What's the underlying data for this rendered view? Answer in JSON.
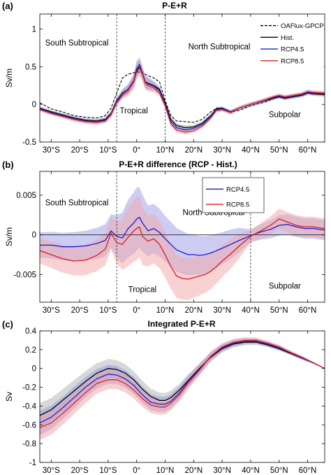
{
  "chart_data": [
    {
      "panel": "(a)",
      "type": "line",
      "title": "P-E+R",
      "ylabel": "Sv/m",
      "ylim": [
        -0.5,
        1.2
      ],
      "xlim": [
        -34,
        66
      ],
      "yticks": [
        -0.5,
        0,
        0.5,
        1
      ],
      "ytick_labels": [
        "-0.5",
        "0",
        "0.5",
        "1"
      ],
      "xticks": [
        -30,
        -20,
        -10,
        0,
        10,
        20,
        30,
        40,
        50,
        60
      ],
      "xtick_labels": [
        "30°S",
        "20°S",
        "10°S",
        "0°",
        "10°N",
        "20°N",
        "30°N",
        "40°N",
        "50°N",
        "60°N"
      ],
      "vlines": [
        -7,
        10
      ],
      "legend_position": "top-right",
      "annotations": [
        {
          "text": "South Subtropical",
          "x": -21,
          "y": 0.78
        },
        {
          "text": "North Subtropical",
          "x": 29,
          "y": 0.73
        },
        {
          "text": "Tropical",
          "x": -1,
          "y": -0.12
        },
        {
          "text": "Subpolar",
          "x": 52,
          "y": -0.17
        }
      ],
      "x": [
        -34,
        -30,
        -26,
        -22,
        -18,
        -14,
        -11,
        -9,
        -7,
        -5,
        -3,
        -1,
        0,
        1,
        2,
        3,
        4,
        6,
        8,
        10,
        12,
        14,
        17,
        20,
        23,
        26,
        28,
        30,
        33,
        36,
        40,
        45,
        48,
        50,
        52,
        55,
        58,
        60,
        62,
        66
      ],
      "series": [
        {
          "name": "OAFlux-GPCP",
          "color": "#000000",
          "dash": true,
          "band": false,
          "values": [
            0.02,
            -0.06,
            -0.1,
            -0.15,
            -0.17,
            -0.18,
            -0.15,
            -0.05,
            0.15,
            0.35,
            0.4,
            0.42,
            0.43,
            0.43,
            0.42,
            0.4,
            0.38,
            0.35,
            0.3,
            0.05,
            -0.15,
            -0.22,
            -0.23,
            -0.24,
            -0.2,
            -0.1,
            -0.05,
            -0.06,
            -0.1,
            -0.08,
            -0.02,
            0.03,
            0.08,
            0.1,
            0.1,
            0.12,
            0.14,
            0.15,
            0.14,
            0.13
          ]
        },
        {
          "name": "Hist.",
          "color": "#000000",
          "dash": false,
          "band": true,
          "band_color": "#a8a8a8",
          "values": [
            -0.05,
            -0.1,
            -0.14,
            -0.18,
            -0.21,
            -0.22,
            -0.2,
            -0.12,
            0.05,
            0.15,
            0.2,
            0.3,
            0.45,
            0.5,
            0.4,
            0.3,
            0.28,
            0.25,
            0.2,
            0.02,
            -0.2,
            -0.28,
            -0.31,
            -0.3,
            -0.25,
            -0.15,
            -0.06,
            -0.05,
            -0.1,
            -0.05,
            0.0,
            0.05,
            0.08,
            0.1,
            0.08,
            0.1,
            0.12,
            0.15,
            0.14,
            0.13
          ]
        },
        {
          "name": "RCP4.5",
          "color": "#2020d0",
          "dash": false,
          "band": true,
          "band_color": "#8aa0e6",
          "values": [
            -0.06,
            -0.11,
            -0.15,
            -0.19,
            -0.22,
            -0.23,
            -0.21,
            -0.13,
            0.04,
            0.14,
            0.2,
            0.32,
            0.48,
            0.53,
            0.42,
            0.3,
            0.27,
            0.24,
            0.18,
            0.0,
            -0.23,
            -0.31,
            -0.34,
            -0.32,
            -0.27,
            -0.16,
            -0.07,
            -0.06,
            -0.1,
            -0.05,
            0.0,
            0.05,
            0.09,
            0.11,
            0.09,
            0.11,
            0.13,
            0.16,
            0.15,
            0.14
          ]
        },
        {
          "name": "RCP8.5",
          "color": "#e02020",
          "dash": false,
          "band": true,
          "band_color": "#f4a0a0",
          "values": [
            -0.07,
            -0.12,
            -0.16,
            -0.2,
            -0.23,
            -0.24,
            -0.22,
            -0.14,
            0.02,
            0.12,
            0.18,
            0.3,
            0.43,
            0.48,
            0.4,
            0.28,
            0.25,
            0.22,
            0.15,
            -0.02,
            -0.26,
            -0.34,
            -0.37,
            -0.35,
            -0.29,
            -0.18,
            -0.08,
            -0.07,
            -0.11,
            -0.05,
            0.0,
            0.06,
            0.1,
            0.12,
            0.1,
            0.12,
            0.14,
            0.17,
            0.16,
            0.15
          ]
        }
      ]
    },
    {
      "panel": "(b)",
      "type": "line",
      "title": "P-E+R difference (RCP - Hist.)",
      "ylabel": "Sv/m",
      "ylim": [
        -0.0085,
        0.008
      ],
      "xlim": [
        -34,
        66
      ],
      "yticks": [
        -0.005,
        0,
        0.005
      ],
      "ytick_labels": [
        "-0.005",
        "0",
        "0.005"
      ],
      "xticks": [
        -30,
        -20,
        -10,
        0,
        10,
        20,
        30,
        40,
        50,
        60
      ],
      "xtick_labels": [
        "30°S",
        "20°S",
        "10°S",
        "0°",
        "10°N",
        "20°N",
        "30°N",
        "40°N",
        "50°N",
        "60°N"
      ],
      "vlines": [
        -7,
        40
      ],
      "zero_line": true,
      "legend_position": "top-right",
      "annotations": [
        {
          "text": "South Subtropical",
          "x": -21,
          "y": 0.0037
        },
        {
          "text": "North Subtropical",
          "x": 27,
          "y": 0.0025
        },
        {
          "text": "Tropical",
          "x": 2,
          "y": -0.0072
        },
        {
          "text": "Subpolar",
          "x": 52,
          "y": -0.0068
        }
      ],
      "x": [
        -34,
        -30,
        -26,
        -22,
        -18,
        -14,
        -11,
        -9,
        -7,
        -5,
        -3,
        -1,
        0,
        1,
        2,
        4,
        6,
        8,
        10,
        12,
        14,
        16,
        18,
        20,
        22,
        24,
        26,
        28,
        30,
        33,
        36,
        40,
        44,
        47,
        50,
        53,
        56,
        59,
        62,
        66
      ],
      "series": [
        {
          "name": "RCP4.5",
          "color": "#1a1ad0",
          "band": true,
          "band_color": "#9c9ce8",
          "values": [
            -0.0013,
            -0.0013,
            -0.0015,
            -0.0015,
            -0.0014,
            -0.0011,
            -0.0007,
            0.0005,
            -0.0002,
            -0.0004,
            0.0008,
            0.0015,
            0.002,
            0.0022,
            0.0015,
            0.0005,
            0.0008,
            0.0003,
            -0.0005,
            -0.0012,
            -0.0019,
            -0.0022,
            -0.0025,
            -0.0025,
            -0.0026,
            -0.0025,
            -0.0023,
            -0.002,
            -0.0017,
            -0.0012,
            -0.0007,
            -0.0001,
            0.0004,
            0.0007,
            0.0012,
            0.0013,
            0.001,
            0.0008,
            0.0008,
            0.0006
          ]
        },
        {
          "name": "RCP8.5",
          "color": "#e01a1a",
          "band": true,
          "band_color": "#f2a6a6",
          "values": [
            -0.002,
            -0.0025,
            -0.003,
            -0.0033,
            -0.0032,
            -0.0026,
            -0.0018,
            0.0002,
            -0.001,
            -0.0012,
            -0.0003,
            0.0005,
            0.0008,
            0.001,
            -0.0002,
            -0.0008,
            -0.0005,
            -0.0012,
            -0.0025,
            -0.004,
            -0.0052,
            -0.0055,
            -0.0056,
            -0.0054,
            -0.0052,
            -0.005,
            -0.0046,
            -0.004,
            -0.0033,
            -0.0024,
            -0.0014,
            -0.0002,
            0.0006,
            0.0012,
            0.002,
            0.0016,
            0.0012,
            0.001,
            0.001,
            0.0008
          ]
        }
      ]
    },
    {
      "panel": "(c)",
      "type": "line",
      "title": "Integrated P-E+R",
      "ylabel": "Sv",
      "ylim": [
        -1,
        0.4
      ],
      "xlim": [
        -34,
        66
      ],
      "yticks": [
        -1,
        -0.8,
        -0.6,
        -0.4,
        -0.2,
        0,
        0.2,
        0.4
      ],
      "ytick_labels": [
        "-1",
        "-0.8",
        "-0.6",
        "-0.4",
        "-0.2",
        "0",
        "0.2",
        "0.4"
      ],
      "xticks": [
        -30,
        -20,
        -10,
        0,
        10,
        20,
        30,
        40,
        50,
        60
      ],
      "xtick_labels": [
        "30°S",
        "20°S",
        "10°S",
        "0°",
        "10°N",
        "20°N",
        "30°N",
        "40°N",
        "50°N",
        "60°N"
      ],
      "x": [
        -34,
        -30,
        -26,
        -22,
        -18,
        -14,
        -10,
        -7,
        -4,
        -1,
        2,
        5,
        8,
        10,
        12,
        15,
        18,
        22,
        26,
        30,
        34,
        38,
        40,
        42,
        46,
        50,
        54,
        58,
        62,
        64,
        66
      ],
      "series": [
        {
          "name": "Hist.",
          "color": "#000000",
          "band": true,
          "band_color": "#b2b2b2",
          "values": [
            -0.5,
            -0.44,
            -0.34,
            -0.24,
            -0.14,
            -0.05,
            0.0,
            -0.01,
            -0.05,
            -0.12,
            -0.22,
            -0.3,
            -0.34,
            -0.34,
            -0.31,
            -0.23,
            -0.13,
            0.0,
            0.12,
            0.21,
            0.26,
            0.28,
            0.28,
            0.28,
            0.25,
            0.21,
            0.16,
            0.11,
            0.06,
            0.03,
            0.0
          ]
        },
        {
          "name": "RCP4.5",
          "color": "#2020d0",
          "band": true,
          "band_color": "#8c9be8",
          "values": [
            -0.58,
            -0.52,
            -0.42,
            -0.31,
            -0.2,
            -0.11,
            -0.06,
            -0.07,
            -0.11,
            -0.18,
            -0.28,
            -0.36,
            -0.38,
            -0.38,
            -0.35,
            -0.26,
            -0.14,
            -0.01,
            0.13,
            0.22,
            0.27,
            0.29,
            0.29,
            0.29,
            0.26,
            0.22,
            0.17,
            0.11,
            0.06,
            0.03,
            0.0
          ]
        },
        {
          "name": "RCP8.5",
          "color": "#e02020",
          "band": true,
          "band_color": "#f4a0a0",
          "values": [
            -0.63,
            -0.58,
            -0.48,
            -0.37,
            -0.26,
            -0.16,
            -0.12,
            -0.12,
            -0.16,
            -0.23,
            -0.32,
            -0.39,
            -0.41,
            -0.41,
            -0.37,
            -0.28,
            -0.16,
            -0.02,
            0.13,
            0.23,
            0.28,
            0.3,
            0.3,
            0.3,
            0.27,
            0.23,
            0.17,
            0.12,
            0.06,
            0.03,
            0.0
          ]
        }
      ]
    }
  ]
}
